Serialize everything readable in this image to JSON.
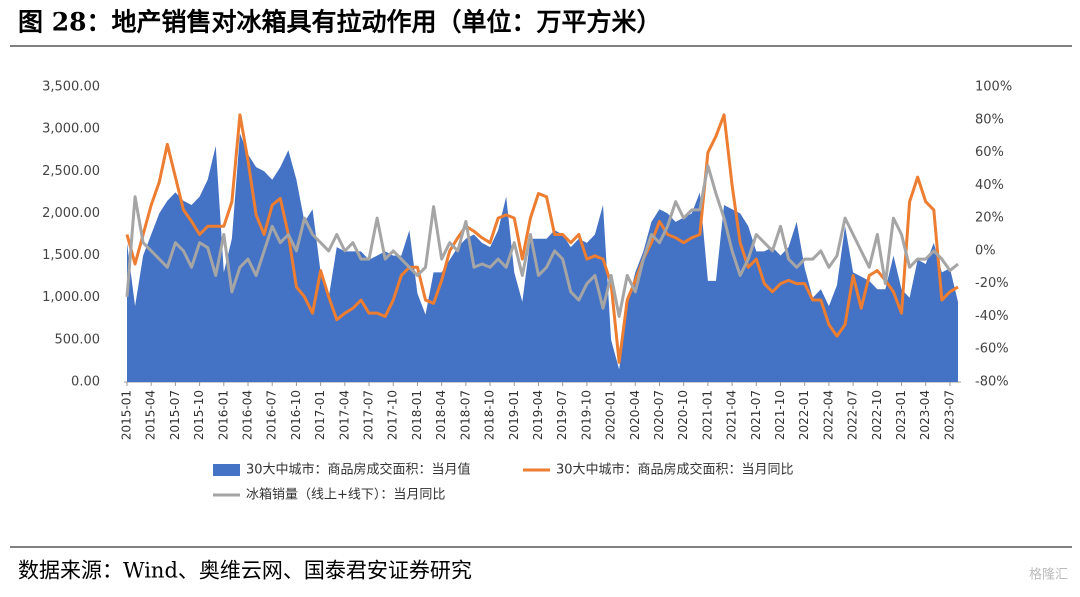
{
  "chart_data": {
    "type": "area-line",
    "title": "图 28：地产销售对冰箱具有拉动作用（单位：万平方米）",
    "source": "数据来源：Wind、奥维云网、国泰君安证券研究",
    "watermark": "格隆汇",
    "categories": [
      "2015-01",
      null,
      null,
      "2015-04",
      null,
      null,
      "2015-07",
      null,
      null,
      "2015-10",
      null,
      null,
      "2016-01",
      null,
      null,
      "2016-04",
      null,
      null,
      "2016-07",
      null,
      null,
      "2016-10",
      null,
      null,
      "2017-01",
      null,
      null,
      "2017-04",
      null,
      null,
      "2017-07",
      null,
      null,
      "2017-10",
      null,
      null,
      "2018-01",
      null,
      null,
      "2018-04",
      null,
      null,
      "2018-07",
      null,
      null,
      "2018-10",
      null,
      null,
      "2019-01",
      null,
      null,
      "2019-04",
      null,
      null,
      "2019-07",
      null,
      null,
      "2019-10",
      null,
      null,
      "2020-01",
      null,
      null,
      "2020-04",
      null,
      null,
      "2020-07",
      null,
      null,
      "2020-10",
      null,
      null,
      "2021-01",
      null,
      null,
      "2021-04",
      null,
      null,
      "2021-07",
      null,
      null,
      "2021-10",
      null,
      null,
      "2022-01",
      null,
      null,
      "2022-04",
      null,
      null,
      "2022-07",
      null,
      null,
      "2022-10",
      null,
      null,
      "2023-01",
      null,
      null,
      "2023-04",
      null,
      null,
      "2023-07",
      null
    ],
    "ylim": [
      0,
      3500
    ],
    "yticks": [
      {
        "value": 0,
        "label": "0.00"
      },
      {
        "value": 500,
        "label": "500.00"
      },
      {
        "value": 1000,
        "label": "1,000.00"
      },
      {
        "value": 1500,
        "label": "1,500.00"
      },
      {
        "value": 2000,
        "label": "2,000.00"
      },
      {
        "value": 2500,
        "label": "2,500.00"
      },
      {
        "value": 3000,
        "label": "3,000.00"
      },
      {
        "value": 3500,
        "label": "3,500.00"
      }
    ],
    "y2lim": [
      -80,
      100
    ],
    "y2ticks": [
      {
        "value": -80,
        "label": "-80%"
      },
      {
        "value": -60,
        "label": "-60%"
      },
      {
        "value": -40,
        "label": "-40%"
      },
      {
        "value": -20,
        "label": "-20%"
      },
      {
        "value": 0,
        "label": "0%"
      },
      {
        "value": 20,
        "label": "20%"
      },
      {
        "value": 40,
        "label": "40%"
      },
      {
        "value": 60,
        "label": "60%"
      },
      {
        "value": 80,
        "label": "80%"
      },
      {
        "value": 100,
        "label": "100%"
      }
    ],
    "series": [
      {
        "name": "30大中城市：商品房成交面积：当月值",
        "kind": "area",
        "color": "#4472c4",
        "values": [
          1650,
          900,
          1500,
          1750,
          2000,
          2150,
          2250,
          2150,
          2100,
          2200,
          2400,
          2800,
          1300,
          1700,
          2950,
          2700,
          2550,
          2500,
          2400,
          2550,
          2750,
          2400,
          1900,
          2050,
          1300,
          1000,
          1600,
          1550,
          1550,
          1550,
          1450,
          1500,
          1550,
          1500,
          1500,
          1800,
          1050,
          800,
          1300,
          1300,
          1450,
          1600,
          1700,
          1750,
          1650,
          1600,
          1800,
          2200,
          1300,
          950,
          1700,
          1700,
          1700,
          1800,
          1750,
          1600,
          1700,
          1650,
          1750,
          2100,
          500,
          150,
          900,
          1300,
          1550,
          1900,
          2050,
          2000,
          1900,
          1950,
          2000,
          2250,
          1200,
          1200,
          2100,
          2050,
          2000,
          1850,
          1550,
          1550,
          1600,
          1500,
          1600,
          1900,
          1350,
          1000,
          1100,
          900,
          1150,
          1850,
          1300,
          1250,
          1200,
          1100,
          1100,
          1500,
          1100,
          1000,
          1450,
          1400,
          1650,
          1300,
          1350,
          950
        ]
      },
      {
        "name": "30大中城市：商品房成交面积：当月同比",
        "kind": "line",
        "axis": "y2",
        "color": "#ed7d31",
        "values": [
          10,
          -8,
          10,
          28,
          42,
          65,
          45,
          25,
          18,
          10,
          15,
          15,
          15,
          30,
          83,
          55,
          22,
          10,
          28,
          32,
          10,
          -22,
          -28,
          -38,
          -12,
          -28,
          -42,
          -38,
          -35,
          -30,
          -38,
          -38,
          -40,
          -30,
          -15,
          -10,
          -10,
          -30,
          -32,
          -18,
          0,
          8,
          15,
          12,
          8,
          5,
          20,
          22,
          20,
          -5,
          20,
          35,
          33,
          10,
          10,
          5,
          10,
          -5,
          -3,
          -5,
          -20,
          -68,
          -30,
          -18,
          -5,
          5,
          18,
          10,
          8,
          5,
          8,
          10,
          60,
          70,
          83,
          40,
          5,
          -10,
          -5,
          -20,
          -25,
          -20,
          -18,
          -20,
          -20,
          -30,
          -30,
          -45,
          -52,
          -45,
          -15,
          -35,
          -15,
          -12,
          -18,
          -25,
          -38,
          30,
          45,
          30,
          25,
          -30,
          -25,
          -22
        ]
      },
      {
        "name": "冰箱销量（线上+线下）：当月同比",
        "kind": "line",
        "axis": "y2",
        "color": "#a5a5a5",
        "values": [
          -28,
          33,
          5,
          0,
          -5,
          -10,
          5,
          0,
          -10,
          5,
          2,
          -15,
          10,
          -25,
          -10,
          -5,
          -15,
          0,
          15,
          5,
          10,
          0,
          20,
          10,
          5,
          0,
          10,
          0,
          5,
          -5,
          -5,
          20,
          -5,
          0,
          -5,
          -10,
          -15,
          -10,
          27,
          -5,
          5,
          0,
          18,
          -10,
          -8,
          -10,
          -5,
          -10,
          5,
          -15,
          10,
          -15,
          -10,
          0,
          -5,
          -25,
          -30,
          -20,
          -15,
          -35,
          -15,
          -40,
          -15,
          -25,
          -5,
          10,
          5,
          15,
          30,
          20,
          25,
          25,
          52,
          35,
          20,
          0,
          -15,
          -5,
          10,
          5,
          0,
          15,
          -5,
          -10,
          -5,
          -5,
          0,
          -10,
          -3,
          20,
          10,
          0,
          -10,
          10,
          -20,
          20,
          10,
          -10,
          -5,
          -5,
          0,
          -5,
          -12,
          -8
        ]
      }
    ]
  }
}
